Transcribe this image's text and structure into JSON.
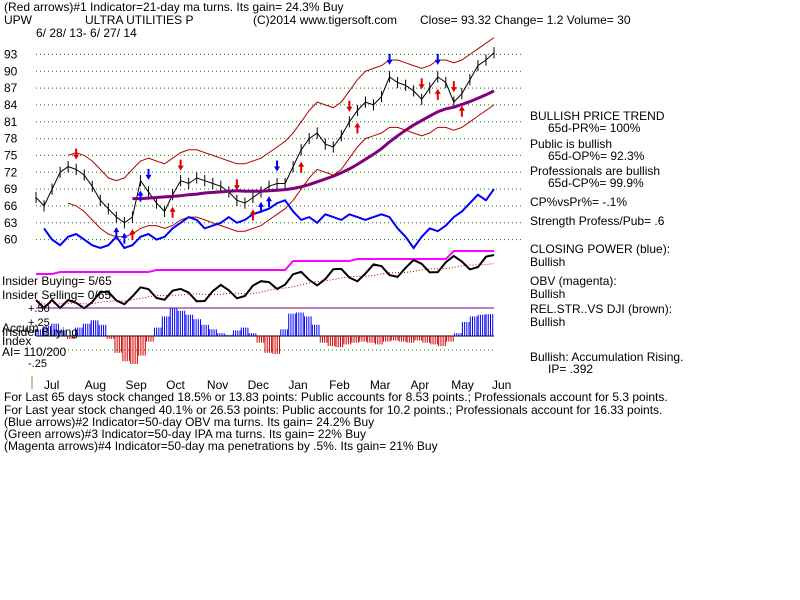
{
  "header": {
    "line1": "(Red arrows)#1 Indicator=21-day ma turns. Its gain= 24.3% Buy",
    "symbol": "UPW",
    "name": "ULTRA UTILITIES P",
    "copyright": "(C)2014 www.tigersoft.com",
    "quote": "Close=  93.32  Change= 1.2 Volume= 30",
    "date_range": "6/ 28/ 13-  6/ 27/ 14"
  },
  "right_panel": {
    "trend_title": "BULLISH PRICE TREND",
    "trend_value": "65d-PR%= 100%",
    "public_title": "Public is bullish",
    "public_value": "65d-OP%= 92.3%",
    "pros_title": "Professionals are bullish",
    "pros_value": "65d-CP%= 99.9%",
    "cp_vs_pr": "CP%vsPr%= -.1%",
    "strength": "Strength Profess/Pub= .6",
    "closing_power": "CLOSING POWER (blue):",
    "closing_power_value": "Bullish",
    "obv": "OBV (magenta):",
    "obv_value": "Bullish",
    "relstr": "REL.STR..VS DJI (brown):",
    "relstr_value": "Bullish",
    "accum": "Bullish: Accumulation Rising.",
    "ip": "IP=  .392"
  },
  "left_labels": {
    "insider_buying": "Insider Buying= 5/65",
    "insider_selling": "Insider Selling= 0/65",
    "accum_label": "Accum",
    "insider_buying2": "Insider Buying",
    "index_label": "Index",
    "ai": "AI= 110/200",
    "ai_ticks": [
      "+.50",
      "+.25",
      "-.25"
    ]
  },
  "footer": [
    "For Last 65 days stock changed  18.5% or  13.83 points:  Public accounts for  8.53 points.;  Professionals account for  5.3 points.",
    "For Last year stock changed  40.1% or  26.53 points:  Public accounts for  10.2 points.;  Professionals account for  16.33 points.",
    "(Blue arrows)#2 Indicator=50-day OBV ma turns. Its gain= 24.2% Buy",
    "(Green arrows)#3 Indicator=50-day IPA ma turns. Its gain= 22% Buy",
    "(Magenta arrows)#4 Indicator=50-day ma penetrations by .5%. Its gain= 21% Buy"
  ],
  "colors": {
    "price": "#000000",
    "band": "#b00000",
    "ma": "#800080",
    "closing_power": "#0000ff",
    "obv": "#ff00ff",
    "relstr": "#000000",
    "accum_pos": "#0000ff",
    "accum_neg": "#d00000",
    "grid": "#008000",
    "arrow_red": "#e00000",
    "arrow_blue": "#0000ff"
  },
  "chart_data": {
    "type": "line",
    "xlabel": "",
    "ylabel": "",
    "x_ticks": [
      "Jul",
      "Aug",
      "Sep",
      "Oct",
      "Nov",
      "Dec",
      "Jan",
      "Feb",
      "Mar",
      "Apr",
      "May",
      "Jun"
    ],
    "y_ticks": [
      60,
      63,
      66,
      69,
      72,
      75,
      78,
      81,
      84,
      87,
      90,
      93
    ],
    "ylim": [
      58.5,
      94.5
    ],
    "grid": true,
    "series": [
      {
        "kind": "price",
        "values": [
          67.5,
          66.0,
          69.0,
          72.0,
          73.0,
          72.5,
          71.5,
          69.5,
          67.0,
          65.5,
          64.0,
          63.0,
          64.0,
          70.5,
          68.5,
          66.5,
          65.0,
          68.0,
          70.5,
          70.0,
          71.0,
          70.5,
          70.0,
          69.5,
          68.5,
          67.0,
          66.5,
          67.5,
          68.5,
          69.5,
          70.0,
          70.0,
          73.0,
          76.0,
          78.0,
          79.0,
          77.0,
          76.5,
          78.5,
          81.0,
          83.0,
          84.5,
          84.0,
          85.5,
          89.0,
          88.0,
          87.5,
          86.5,
          85.0,
          87.0,
          89.0,
          88.0,
          84.5,
          86.0,
          88.5,
          91.0,
          92.0,
          93.3
        ]
      },
      {
        "kind": "ma50",
        "values": [
          null,
          null,
          null,
          null,
          null,
          null,
          null,
          null,
          null,
          null,
          null,
          null,
          67.3,
          67.3,
          67.4,
          67.5,
          67.6,
          67.7,
          67.8,
          68.0,
          68.1,
          68.3,
          68.4,
          68.5,
          68.6,
          68.7,
          68.6,
          68.6,
          68.6,
          68.7,
          68.8,
          68.9,
          69.1,
          69.4,
          69.8,
          70.3,
          70.8,
          71.3,
          71.9,
          72.6,
          73.4,
          74.3,
          75.2,
          76.2,
          77.4,
          78.5,
          79.5,
          80.4,
          81.2,
          82.0,
          82.8,
          83.3,
          83.6,
          84.1,
          84.6,
          85.2,
          85.8,
          86.5
        ]
      },
      {
        "kind": "band_upper",
        "values": [
          null,
          null,
          null,
          null,
          75.0,
          75.5,
          75.0,
          74.0,
          72.5,
          71.0,
          70.5,
          71.0,
          72.5,
          74.0,
          74.5,
          74.0,
          73.5,
          74.5,
          75.5,
          76.0,
          76.0,
          75.5,
          75.0,
          74.5,
          74.0,
          73.5,
          73.5,
          74.0,
          74.5,
          75.5,
          76.5,
          77.5,
          79.0,
          81.0,
          83.0,
          84.5,
          84.0,
          83.5,
          84.5,
          86.5,
          88.5,
          90.0,
          90.5,
          91.0,
          92.0,
          92.0,
          91.5,
          91.0,
          90.5,
          91.0,
          92.0,
          92.0,
          91.5,
          92.0,
          93.0,
          94.0,
          95.0,
          96.0
        ]
      },
      {
        "kind": "band_lower",
        "values": [
          null,
          null,
          null,
          null,
          66.5,
          66.0,
          65.0,
          63.5,
          62.0,
          61.0,
          60.5,
          60.5,
          61.0,
          62.0,
          62.5,
          62.5,
          62.0,
          62.5,
          63.5,
          64.0,
          64.0,
          63.5,
          63.0,
          62.5,
          62.0,
          61.5,
          61.5,
          62.0,
          62.5,
          63.5,
          64.5,
          65.5,
          67.0,
          69.0,
          71.0,
          72.5,
          72.0,
          71.5,
          72.5,
          74.5,
          76.5,
          78.0,
          78.5,
          79.0,
          80.0,
          80.0,
          79.5,
          79.0,
          78.5,
          79.0,
          80.0,
          80.0,
          79.5,
          80.0,
          81.0,
          82.0,
          83.0,
          84.0
        ]
      },
      {
        "kind": "closing_power",
        "values": [
          null,
          62.0,
          60.0,
          59.0,
          60.5,
          61.0,
          60.0,
          59.0,
          58.5,
          59.0,
          60.5,
          58.5,
          59.0,
          60.5,
          61.0,
          60.0,
          60.5,
          62.0,
          63.0,
          64.0,
          63.5,
          62.0,
          62.5,
          63.0,
          64.0,
          63.0,
          63.5,
          64.5,
          65.0,
          65.5,
          66.5,
          67.0,
          65.0,
          63.5,
          64.0,
          63.0,
          64.5,
          64.0,
          63.5,
          64.5,
          64.0,
          63.5,
          64.0,
          64.5,
          64.0,
          62.0,
          60.5,
          58.5,
          60.5,
          62.0,
          61.5,
          62.5,
          64.0,
          65.0,
          66.5,
          68.0,
          67.0,
          69.0
        ]
      }
    ],
    "accumulation_index": {
      "ticks": [
        0.5,
        0.25,
        -0.25
      ],
      "values": [
        0.12,
        0.18,
        0.22,
        0.1,
        -0.05,
        0.15,
        0.22,
        0.28,
        0.2,
        -0.05,
        -0.3,
        -0.45,
        -0.5,
        -0.35,
        -0.1,
        0.15,
        0.35,
        0.5,
        0.45,
        0.38,
        0.3,
        0.2,
        0.12,
        0.05,
        0.02,
        0.1,
        0.15,
        0.05,
        -0.12,
        -0.3,
        -0.32,
        0.12,
        0.4,
        0.42,
        0.35,
        0.2,
        -0.12,
        -0.18,
        -0.2,
        -0.15,
        -0.12,
        -0.1,
        -0.12,
        -0.15,
        -0.1,
        -0.08,
        -0.1,
        -0.12,
        -0.08,
        -0.12,
        -0.15,
        -0.18,
        -0.1,
        0.05,
        0.25,
        0.35,
        0.38,
        0.39
      ]
    }
  }
}
